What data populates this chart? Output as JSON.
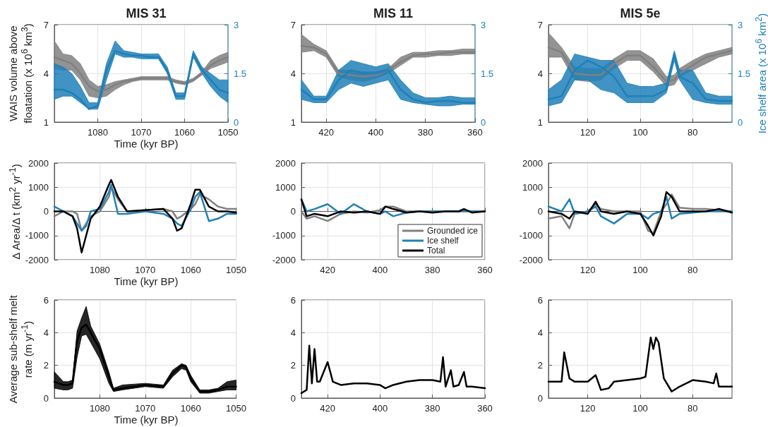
{
  "chart_data": [
    {
      "type": "line",
      "title": "MIS 31",
      "ylabel": "WAIS volume above floatation (x 10$^{6}$ km$^{3}$)",
      "xlabel": "Time (kyr BP)",
      "x": [
        1090,
        1088,
        1086,
        1084,
        1082,
        1080,
        1078,
        1076,
        1074,
        1072,
        1070,
        1068,
        1066,
        1064,
        1062,
        1060,
        1058,
        1056,
        1054,
        1052,
        1050
      ],
      "xlim": [
        1090,
        1050
      ],
      "xticks": [
        1080,
        1070,
        1060,
        1050
      ],
      "ylim": [
        1,
        7
      ],
      "yticks": [
        1,
        4,
        7
      ],
      "y2lim": [
        0,
        3
      ],
      "y2ticks": [
        0,
        1.5,
        3
      ],
      "grid": true,
      "legend": false,
      "series": [
        {
          "color": "#808080",
          "values": [
            5.0,
            4.8,
            4.6,
            4.0,
            3.2,
            2.9,
            3.0,
            3.3,
            3.5,
            3.6,
            3.7,
            3.7,
            3.7,
            3.7,
            3.5,
            3.4,
            3.6,
            4.0,
            4.5,
            4.8,
            5.0
          ],
          "lower": [
            4.3,
            4.2,
            4.2,
            3.6,
            2.6,
            2.5,
            2.6,
            3.0,
            3.3,
            3.5,
            3.6,
            3.6,
            3.6,
            3.6,
            3.4,
            3.3,
            3.5,
            3.9,
            4.3,
            4.5,
            4.7
          ],
          "upper": [
            6.0,
            5.2,
            5.1,
            4.6,
            3.6,
            3.2,
            3.3,
            3.5,
            3.6,
            3.7,
            3.8,
            3.8,
            3.8,
            3.8,
            3.6,
            3.5,
            3.7,
            4.1,
            4.8,
            5.1,
            5.3
          ]
        },
        {
          "color": "#1f80b8",
          "axis": "y2",
          "values": [
            1.0,
            1.0,
            0.9,
            0.7,
            0.4,
            0.5,
            1.6,
            2.2,
            2.1,
            2.05,
            2.05,
            2.0,
            2.0,
            1.6,
            0.8,
            0.8,
            2.1,
            1.6,
            1.3,
            1.0,
            0.9
          ],
          "lower": [
            0.7,
            0.8,
            0.8,
            0.6,
            0.4,
            0.4,
            1.3,
            2.1,
            2.0,
            2.0,
            1.95,
            1.95,
            1.95,
            1.5,
            0.7,
            0.7,
            2.0,
            1.5,
            1.1,
            0.8,
            0.6
          ],
          "upper": [
            1.8,
            1.7,
            1.5,
            1.1,
            0.6,
            0.6,
            1.8,
            2.5,
            2.2,
            2.15,
            2.1,
            2.1,
            2.1,
            1.7,
            0.9,
            0.9,
            2.2,
            1.7,
            1.5,
            1.3,
            1.3
          ]
        }
      ]
    },
    {
      "type": "line",
      "title": "MIS 11",
      "x": [
        430,
        425,
        420,
        415,
        410,
        405,
        400,
        395,
        390,
        385,
        380,
        375,
        370,
        365,
        360
      ],
      "xlim": [
        430,
        360
      ],
      "xticks": [
        420,
        400,
        380,
        360
      ],
      "ylim": [
        1,
        7
      ],
      "yticks": [
        1,
        4,
        7
      ],
      "y2lim": [
        0,
        3
      ],
      "y2ticks": [
        0,
        1.5,
        3
      ],
      "grid": true,
      "legend": false,
      "series": [
        {
          "color": "#808080",
          "values": [
            5.7,
            5.6,
            5.2,
            4.0,
            3.9,
            3.8,
            3.9,
            4.2,
            4.7,
            5.1,
            5.2,
            5.2,
            5.3,
            5.3,
            5.3
          ],
          "lower": [
            5.3,
            5.4,
            5.0,
            3.8,
            3.6,
            3.5,
            3.7,
            4.0,
            4.5,
            5.0,
            5.0,
            5.1,
            5.1,
            5.2,
            5.2
          ],
          "upper": [
            6.4,
            5.8,
            5.4,
            4.2,
            4.2,
            4.1,
            4.1,
            4.3,
            5.0,
            5.3,
            5.3,
            5.4,
            5.4,
            5.5,
            5.5
          ]
        },
        {
          "color": "#1f80b8",
          "axis": "y2",
          "values": [
            1.0,
            0.7,
            0.7,
            1.3,
            1.6,
            1.5,
            1.5,
            1.6,
            1.0,
            0.7,
            0.6,
            0.65,
            0.65,
            0.6,
            0.6
          ],
          "lower": [
            0.7,
            0.6,
            0.6,
            1.0,
            1.2,
            1.1,
            1.2,
            1.3,
            0.7,
            0.6,
            0.55,
            0.5,
            0.5,
            0.55,
            0.55
          ],
          "upper": [
            1.3,
            0.8,
            0.8,
            1.6,
            1.9,
            1.8,
            1.7,
            1.8,
            1.3,
            0.9,
            0.75,
            0.75,
            0.8,
            0.75,
            0.75
          ]
        }
      ]
    },
    {
      "type": "line",
      "title": "MIS 5e",
      "y2label": "Ice shelf area (x 10$^{6}$ km$^{2}$)",
      "x": [
        135,
        130,
        125,
        120,
        115,
        110,
        105,
        100,
        95,
        90,
        87,
        85,
        80,
        75,
        70,
        65
      ],
      "xlim": [
        135,
        65
      ],
      "xticks": [
        120,
        100,
        80
      ],
      "ylim": [
        1,
        7
      ],
      "yticks": [
        1,
        4,
        7
      ],
      "y2lim": [
        0,
        3
      ],
      "y2ticks": [
        0,
        1.5,
        3
      ],
      "grid": true,
      "legend": false,
      "series": [
        {
          "color": "#808080",
          "values": [
            5.6,
            5.3,
            4.0,
            3.9,
            3.9,
            4.6,
            5.1,
            5.1,
            4.4,
            3.5,
            3.6,
            4.0,
            4.5,
            5.0,
            5.2,
            5.4
          ],
          "lower": [
            5.0,
            5.0,
            3.6,
            3.5,
            3.6,
            4.3,
            4.8,
            4.8,
            4.1,
            3.2,
            3.3,
            3.8,
            4.2,
            4.6,
            5.0,
            5.2
          ],
          "upper": [
            6.5,
            5.6,
            4.4,
            4.3,
            4.3,
            4.9,
            5.4,
            5.4,
            4.9,
            3.8,
            3.9,
            4.3,
            4.8,
            5.2,
            5.4,
            5.6
          ]
        },
        {
          "color": "#1f80b8",
          "axis": "y2",
          "values": [
            0.7,
            0.8,
            1.6,
            1.9,
            1.7,
            1.4,
            0.8,
            0.8,
            0.8,
            1.0,
            2.1,
            1.4,
            1.2,
            0.7,
            0.65,
            0.65
          ],
          "lower": [
            0.5,
            0.6,
            1.3,
            1.3,
            1.0,
            0.9,
            0.6,
            0.6,
            0.6,
            0.9,
            1.9,
            1.3,
            0.7,
            0.6,
            0.55,
            0.55
          ],
          "upper": [
            1.0,
            1.3,
            2.1,
            2.0,
            1.9,
            1.9,
            1.2,
            1.1,
            1.1,
            1.2,
            2.2,
            1.6,
            1.6,
            0.9,
            0.8,
            0.8
          ]
        }
      ]
    },
    {
      "type": "line",
      "ylabel": "Δ Area/Δ t (km$^{2}$ yr$^{-1}$)",
      "xlabel": "Time (kyr BP)",
      "x": [
        1090,
        1088,
        1086,
        1085,
        1084,
        1083,
        1082,
        1080,
        1078,
        1077.5,
        1076,
        1074,
        1070,
        1066,
        1064,
        1063,
        1062,
        1060,
        1059,
        1058,
        1056,
        1054,
        1052,
        1050
      ],
      "xlim": [
        1090,
        1050
      ],
      "xticks": [
        1080,
        1070,
        1060,
        1050
      ],
      "ylim": [
        -2000,
        2000
      ],
      "yticks": [
        -2000,
        -1000,
        0,
        1000,
        2000
      ],
      "grid": true,
      "legend": false,
      "series": [
        {
          "color": "#808080",
          "values": [
            -200,
            0,
            0,
            -100,
            -800,
            -500,
            -200,
            0,
            600,
            1000,
            500,
            0,
            50,
            100,
            0,
            -300,
            -200,
            100,
            300,
            700,
            500,
            200,
            100,
            100
          ]
        },
        {
          "color": "#1f80b8",
          "values": [
            200,
            0,
            -200,
            -500,
            -800,
            -600,
            0,
            100,
            800,
            1100,
            -100,
            -100,
            0,
            -100,
            -300,
            -500,
            -600,
            100,
            600,
            800,
            -400,
            -300,
            -100,
            -100
          ]
        },
        {
          "color": "#000000",
          "values": [
            0,
            0,
            -200,
            -700,
            -1700,
            -1000,
            -300,
            200,
            1100,
            1300,
            600,
            0,
            50,
            100,
            -300,
            -800,
            -700,
            300,
            900,
            900,
            200,
            0,
            0,
            -50
          ]
        }
      ]
    },
    {
      "type": "line",
      "x": [
        430,
        428,
        425,
        420,
        415,
        410,
        405,
        400,
        398,
        395,
        390,
        385,
        380,
        375,
        370,
        368,
        365,
        360
      ],
      "xlim": [
        430,
        360
      ],
      "xticks": [
        420,
        400,
        380,
        360
      ],
      "ylim": [
        -2000,
        2000
      ],
      "yticks": [
        -2000,
        -1000,
        0,
        1000,
        2000
      ],
      "grid": true,
      "legend": "bottom right",
      "series": [
        {
          "name": "Grounded ice",
          "color": "#808080",
          "values": [
            0,
            -300,
            -200,
            -400,
            -100,
            0,
            -50,
            50,
            200,
            200,
            0,
            0,
            0,
            0,
            0,
            50,
            0,
            0
          ]
        },
        {
          "name": "Ice shelf",
          "color": "#1f80b8",
          "values": [
            500,
            0,
            100,
            300,
            -100,
            300,
            0,
            -100,
            0,
            -200,
            -50,
            0,
            0,
            0,
            0,
            0,
            0,
            0
          ]
        },
        {
          "name": "Total",
          "color": "#000000",
          "values": [
            500,
            -200,
            -100,
            -200,
            0,
            -50,
            0,
            -100,
            200,
            100,
            -50,
            0,
            -50,
            0,
            0,
            100,
            -50,
            0
          ]
        }
      ]
    },
    {
      "type": "line",
      "x": [
        135,
        130,
        127,
        125,
        120,
        117,
        115,
        110,
        105,
        100,
        97,
        95,
        92,
        90,
        88,
        85,
        80,
        75,
        70,
        65
      ],
      "xlim": [
        135,
        65
      ],
      "xticks": [
        120,
        100,
        80
      ],
      "ylim": [
        -2000,
        2000
      ],
      "yticks": [
        -2000,
        -1000,
        0,
        1000,
        2000
      ],
      "grid": true,
      "legend": false,
      "series": [
        {
          "color": "#808080",
          "values": [
            -300,
            -200,
            -700,
            -100,
            0,
            300,
            100,
            0,
            0,
            0,
            -800,
            -900,
            0,
            300,
            700,
            150,
            100,
            100,
            50,
            0
          ]
        },
        {
          "color": "#1f80b8",
          "values": [
            200,
            0,
            500,
            -100,
            0,
            200,
            -200,
            -500,
            -100,
            -100,
            -300,
            -100,
            0,
            600,
            -300,
            -100,
            -50,
            0,
            0,
            0
          ]
        },
        {
          "color": "#000000",
          "values": [
            0,
            -100,
            -300,
            0,
            -100,
            400,
            0,
            -100,
            0,
            -100,
            -600,
            -1000,
            -200,
            800,
            600,
            0,
            0,
            0,
            100,
            -50
          ]
        }
      ]
    },
    {
      "type": "line",
      "ylabel": "Average sub-shelf melt rate (m yr$^{-1}$)",
      "xlabel": "Time (kyr BP)",
      "x": [
        1090,
        1088,
        1087,
        1086,
        1085,
        1084,
        1083,
        1082,
        1080,
        1078,
        1077,
        1075,
        1070,
        1066,
        1064,
        1062,
        1061,
        1060,
        1058,
        1056,
        1054,
        1052,
        1050
      ],
      "xlim": [
        1090,
        1050
      ],
      "xticks": [
        1080,
        1070,
        1060,
        1050
      ],
      "ylim": [
        0,
        6
      ],
      "yticks": [
        0,
        2,
        4,
        6
      ],
      "grid": true,
      "legend": false,
      "series": [
        {
          "color": "#000000",
          "values": [
            1.0,
            0.8,
            0.8,
            0.9,
            3.5,
            4.3,
            4.5,
            4.0,
            3.0,
            1.3,
            0.5,
            0.6,
            0.8,
            0.7,
            1.5,
            2.0,
            1.9,
            1.2,
            0.4,
            0.4,
            0.5,
            0.7,
            0.7
          ],
          "lower": [
            0.6,
            0.5,
            0.5,
            0.6,
            2.5,
            3.8,
            3.9,
            3.4,
            2.4,
            0.9,
            0.4,
            0.5,
            0.7,
            0.6,
            1.3,
            1.8,
            1.7,
            1.0,
            0.3,
            0.3,
            0.4,
            0.5,
            0.5
          ],
          "upper": [
            1.6,
            1.0,
            1.0,
            1.1,
            4.1,
            4.9,
            5.6,
            4.4,
            3.3,
            1.6,
            0.6,
            0.8,
            0.9,
            0.8,
            1.7,
            2.1,
            2.0,
            1.4,
            0.5,
            0.5,
            0.6,
            1.0,
            1.1
          ]
        }
      ]
    },
    {
      "type": "line",
      "x": [
        430,
        428,
        427,
        426,
        425,
        424,
        423,
        420,
        418,
        415,
        410,
        405,
        400,
        398,
        395,
        390,
        385,
        380,
        377,
        376,
        375,
        373,
        372,
        370,
        368,
        367,
        365,
        360
      ],
      "xlim": [
        430,
        360
      ],
      "xticks": [
        420,
        400,
        380,
        360
      ],
      "ylim": [
        0,
        6
      ],
      "yticks": [
        0,
        2,
        4,
        6
      ],
      "grid": true,
      "legend": false,
      "series": [
        {
          "color": "#000000",
          "values": [
            0.3,
            0.5,
            3.2,
            0.9,
            3.0,
            1.0,
            1.0,
            2.2,
            1.0,
            0.8,
            0.9,
            0.9,
            0.8,
            0.6,
            0.8,
            1.0,
            1.1,
            1.1,
            1.0,
            2.5,
            0.7,
            1.7,
            0.7,
            0.8,
            1.6,
            0.7,
            0.7,
            0.6
          ]
        }
      ]
    },
    {
      "type": "line",
      "x": [
        135,
        132,
        130,
        129,
        127,
        125,
        120,
        117,
        115,
        112,
        110,
        105,
        100,
        98,
        96,
        95,
        94,
        93,
        91,
        88,
        85,
        80,
        75,
        72,
        71,
        70,
        65
      ],
      "xlim": [
        135,
        65
      ],
      "xticks": [
        120,
        100,
        80
      ],
      "ylim": [
        0,
        6
      ],
      "yticks": [
        0,
        2,
        4,
        6
      ],
      "grid": true,
      "legend": false,
      "series": [
        {
          "color": "#000000",
          "values": [
            1.0,
            1.0,
            1.0,
            2.8,
            1.2,
            1.0,
            1.0,
            1.4,
            0.5,
            0.6,
            1.0,
            1.1,
            1.2,
            1.3,
            3.7,
            3.0,
            3.7,
            3.4,
            1.2,
            0.4,
            0.7,
            1.1,
            1.0,
            0.9,
            1.5,
            0.7,
            0.7
          ]
        }
      ]
    }
  ]
}
